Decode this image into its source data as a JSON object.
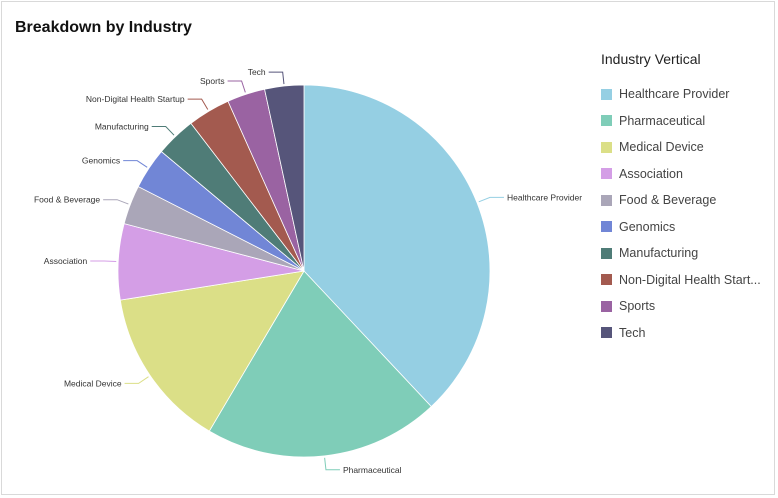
{
  "title": "Breakdown by Industry",
  "legend": {
    "title": "Industry Vertical",
    "items": [
      "Healthcare Provider",
      "Pharmaceutical",
      "Medical Device",
      "Association",
      "Food & Beverage",
      "Genomics",
      "Manufacturing",
      "Non-Digital Health Start...",
      "Sports",
      "Tech"
    ]
  },
  "chart_data": {
    "type": "pie",
    "title": "Breakdown by Industry",
    "legend_title": "Industry Vertical",
    "legend_placement": "right",
    "categories": [
      "Healthcare Provider",
      "Pharmaceutical",
      "Medical Device",
      "Association",
      "Food & Beverage",
      "Genomics",
      "Manufacturing",
      "Non-Digital Health Startup",
      "Sports",
      "Tech"
    ],
    "values": [
      38.0,
      20.5,
      14.0,
      6.6,
      3.4,
      3.6,
      3.5,
      3.7,
      3.3,
      3.4
    ],
    "unit": "percent (estimated)",
    "colors": [
      "#95cfe3",
      "#7fcdb8",
      "#dbdf87",
      "#d49ee6",
      "#aaa6b8",
      "#7186d6",
      "#4f7c77",
      "#a35a4f",
      "#9a63a2",
      "#56557a"
    ]
  }
}
